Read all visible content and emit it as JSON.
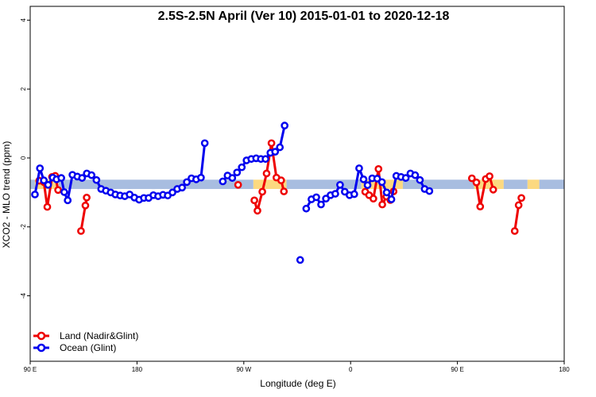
{
  "chart_data": {
    "type": "line",
    "title": "2.5S-2.5N April (Ver 10)   2015-01-01 to 2020-12-18",
    "xlabel": "Longitude (deg E)",
    "ylabel": "XCO2 - MLO trend (ppm)",
    "x_range_deg": [
      90,
      540
    ],
    "y_range": [
      -5.9,
      4.4
    ],
    "x_ticks": [
      {
        "value": 90,
        "label": "90 E"
      },
      {
        "value": 180,
        "label": "180"
      },
      {
        "value": 270,
        "label": "90 W"
      },
      {
        "value": 360,
        "label": "0"
      },
      {
        "value": 450,
        "label": "90 E"
      },
      {
        "value": 540,
        "label": "180"
      }
    ],
    "y_ticks": [
      {
        "value": 4,
        "label": "4"
      },
      {
        "value": 2,
        "label": "2"
      },
      {
        "value": 0,
        "label": "0"
      },
      {
        "value": -2,
        "label": "-2"
      },
      {
        "value": -4,
        "label": "-4"
      }
    ],
    "bands": [
      {
        "name": "land",
        "color": "#fcd980",
        "segments": [
          [
            94,
            114
          ],
          [
            278,
            306
          ],
          [
            369,
            404
          ],
          [
            464,
            489
          ],
          [
            509,
            519
          ]
        ]
      },
      {
        "name": "ocean",
        "color": "#a8bde0",
        "segments": [
          [
            90,
            94
          ],
          [
            114,
            278
          ],
          [
            306,
            369
          ],
          [
            404,
            464
          ],
          [
            489,
            509
          ],
          [
            519,
            540
          ]
        ]
      }
    ],
    "band_y_range": [
      -0.9,
      -0.63
    ],
    "grid": false,
    "legend_position": "bottom-left",
    "series": [
      {
        "name": "Land (Nadir&Glint)",
        "color": "#ee0000",
        "segments": [
          [
            [
              97.6,
              -0.66
            ],
            [
              101.5,
              -0.7
            ],
            [
              104.4,
              -1.42
            ],
            [
              108.4,
              -0.55
            ],
            [
              111.1,
              -0.52
            ],
            [
              113.5,
              -0.93
            ]
          ],
          [
            [
              132.8,
              -2.12
            ],
            [
              136.5,
              -1.38
            ],
            [
              137.6,
              -1.15
            ]
          ],
          [
            [
              265.2,
              -0.78
            ]
          ],
          [
            [
              278.9,
              -1.23
            ],
            [
              281.5,
              -1.53
            ],
            [
              285.6,
              -0.98
            ],
            [
              289.2,
              -0.45
            ],
            [
              293.3,
              0.43
            ],
            [
              297.5,
              -0.57
            ],
            [
              301.5,
              -0.65
            ],
            [
              303.8,
              -0.97
            ]
          ],
          [
            [
              372.3,
              -0.98
            ],
            [
              375.6,
              -1.08
            ],
            [
              379.2,
              -1.18
            ],
            [
              383.5,
              -0.32
            ],
            [
              386.7,
              -1.35
            ],
            [
              390.2,
              -1.12
            ],
            [
              393.5,
              -1.22
            ],
            [
              396.2,
              -0.97
            ]
          ],
          [
            [
              462.2,
              -0.59
            ],
            [
              466.0,
              -0.71
            ],
            [
              469.2,
              -1.41
            ],
            [
              473.9,
              -0.61
            ],
            [
              477.1,
              -0.53
            ],
            [
              480.2,
              -0.92
            ]
          ],
          [
            [
              498.3,
              -2.12
            ],
            [
              501.6,
              -1.37
            ],
            [
              503.9,
              -1.16
            ]
          ]
        ]
      },
      {
        "name": "Ocean (Glint)",
        "color": "#0000ee",
        "segments": [
          [
            [
              94.0,
              -1.06
            ],
            [
              98.2,
              -0.3
            ],
            [
              101.5,
              -0.65
            ],
            [
              105.1,
              -0.78
            ],
            [
              109.0,
              -0.57
            ],
            [
              112.2,
              -0.62
            ],
            [
              116.2,
              -0.58
            ],
            [
              118.7,
              -0.99
            ],
            [
              121.6,
              -1.23
            ],
            [
              125.6,
              -0.49
            ],
            [
              129.7,
              -0.54
            ],
            [
              133.7,
              -0.58
            ],
            [
              137.7,
              -0.45
            ],
            [
              141.7,
              -0.5
            ],
            [
              145.8,
              -0.64
            ],
            [
              149.8,
              -0.9
            ],
            [
              153.8,
              -0.95
            ],
            [
              157.8,
              -1.0
            ],
            [
              161.8,
              -1.06
            ],
            [
              165.8,
              -1.09
            ],
            [
              169.7,
              -1.11
            ],
            [
              173.8,
              -1.06
            ],
            [
              177.8,
              -1.15
            ],
            [
              181.8,
              -1.21
            ],
            [
              185.8,
              -1.16
            ],
            [
              189.8,
              -1.16
            ],
            [
              193.8,
              -1.08
            ],
            [
              197.8,
              -1.11
            ],
            [
              201.9,
              -1.07
            ],
            [
              205.9,
              -1.09
            ],
            [
              209.9,
              -1.0
            ],
            [
              213.9,
              -0.9
            ],
            [
              218.0,
              -0.86
            ],
            [
              222.0,
              -0.7
            ],
            [
              225.9,
              -0.59
            ],
            [
              229.9,
              -0.62
            ],
            [
              233.9,
              -0.57
            ],
            [
              237.1,
              0.43
            ]
          ],
          [
            [
              252.3,
              -0.68
            ],
            [
              256.3,
              -0.51
            ],
            [
              260.3,
              -0.58
            ],
            [
              264.3,
              -0.42
            ],
            [
              268.3,
              -0.27
            ],
            [
              272.3,
              -0.07
            ],
            [
              276.3,
              -0.03
            ],
            [
              280.4,
              -0.01
            ],
            [
              284.4,
              -0.03
            ],
            [
              288.3,
              -0.03
            ],
            [
              292.4,
              0.15
            ],
            [
              296.4,
              0.18
            ],
            [
              300.4,
              0.31
            ],
            [
              304.4,
              0.94
            ]
          ],
          [
            [
              317.5,
              -2.96
            ]
          ],
          [
            [
              322.6,
              -1.47
            ],
            [
              327.0,
              -1.2
            ],
            [
              331.1,
              -1.14
            ],
            [
              335.1,
              -1.35
            ],
            [
              339.2,
              -1.18
            ],
            [
              343.1,
              -1.08
            ],
            [
              347.1,
              -1.04
            ],
            [
              351.1,
              -0.78
            ],
            [
              355.1,
              -0.98
            ],
            [
              359.1,
              -1.08
            ],
            [
              363.1,
              -1.05
            ],
            [
              367.2,
              -0.3
            ],
            [
              370.9,
              -0.62
            ],
            [
              374.3,
              -0.79
            ],
            [
              378.2,
              -0.59
            ],
            [
              382.4,
              -0.6
            ],
            [
              386.4,
              -0.7
            ],
            [
              390.4,
              -1.0
            ],
            [
              394.4,
              -1.2
            ],
            [
              398.5,
              -0.52
            ],
            [
              402.5,
              -0.55
            ],
            [
              406.5,
              -0.58
            ],
            [
              410.4,
              -0.45
            ],
            [
              414.4,
              -0.5
            ],
            [
              418.4,
              -0.64
            ],
            [
              422.4,
              -0.9
            ],
            [
              426.4,
              -0.96
            ]
          ]
        ]
      }
    ]
  }
}
